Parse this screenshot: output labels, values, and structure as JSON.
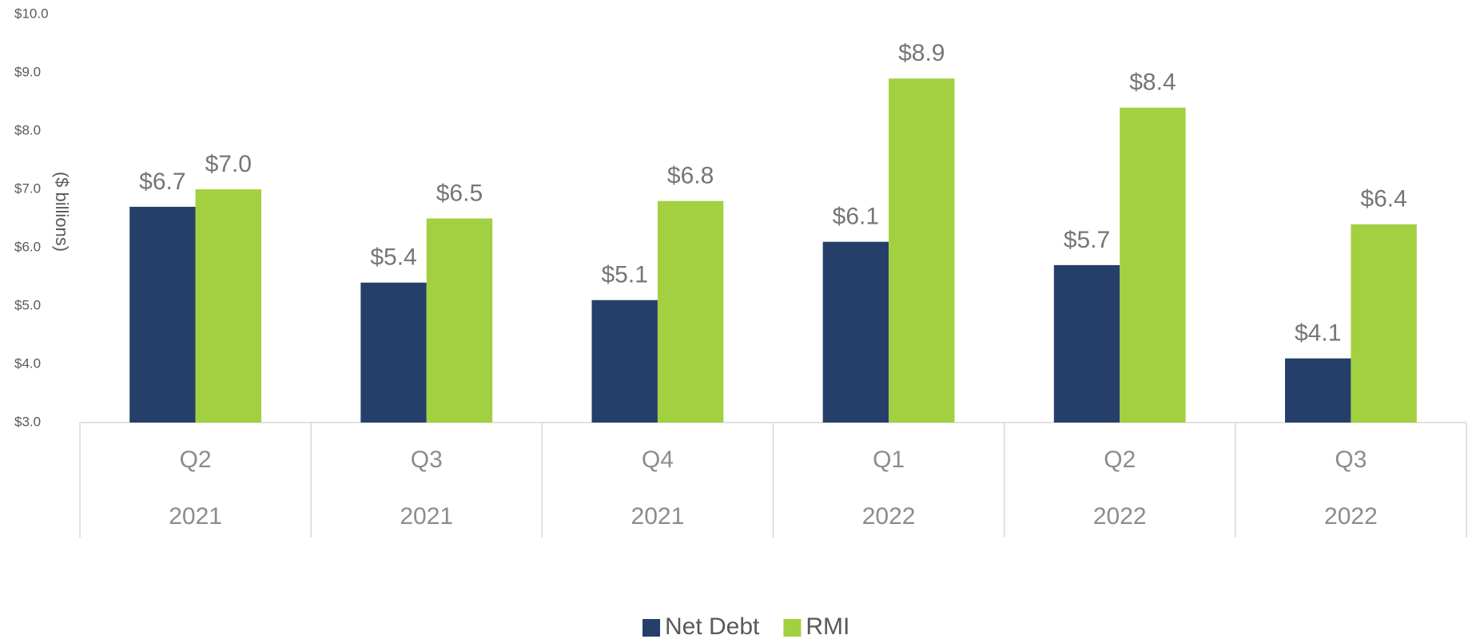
{
  "chart_data": {
    "type": "bar",
    "y_label": "($ billions)",
    "categories": [
      [
        "Q2",
        "2021"
      ],
      [
        "Q3",
        "2021"
      ],
      [
        "Q4",
        "2021"
      ],
      [
        "Q1",
        "2022"
      ],
      [
        "Q2",
        "2022"
      ],
      [
        "Q3",
        "2022"
      ]
    ],
    "series": [
      {
        "name": "Net Debt",
        "color": "#263f6a",
        "values": [
          6.7,
          5.4,
          5.1,
          6.1,
          5.7,
          4.1
        ],
        "value_labels": [
          "$6.7",
          "$5.4",
          "$5.1",
          "$6.1",
          "$5.7",
          "$4.1"
        ]
      },
      {
        "name": "RMI",
        "color": "#a2d041",
        "values": [
          7.0,
          6.5,
          6.8,
          8.9,
          8.4,
          6.4
        ],
        "value_labels": [
          "$7.0",
          "$6.5",
          "$6.8",
          "$8.9",
          "$8.4",
          "$6.4"
        ]
      }
    ],
    "ylim": [
      3,
      10
    ],
    "yticks": [
      {
        "value": 3,
        "label": "$3.0"
      },
      {
        "value": 4,
        "label": "$4.0"
      },
      {
        "value": 5,
        "label": "$5.0"
      },
      {
        "value": 6,
        "label": "$6.0"
      },
      {
        "value": 7,
        "label": "$7.0"
      },
      {
        "value": 8,
        "label": "$8.0"
      },
      {
        "value": 9,
        "label": "$9.0"
      },
      {
        "value": 10,
        "label": "$10.0"
      }
    ],
    "grid": false,
    "legend": "bottom"
  }
}
